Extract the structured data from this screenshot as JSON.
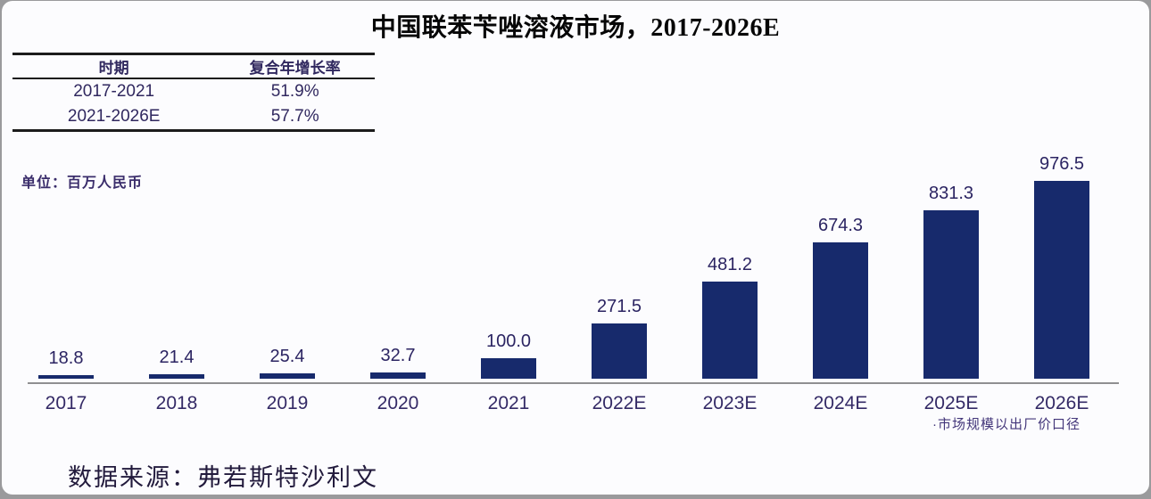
{
  "title": "中国联苯苄唑溶液市场，2017-2026E",
  "cagr_table": {
    "headers": [
      "时期",
      "复合年增长率"
    ],
    "rows": [
      [
        "2017-2021",
        "51.9%"
      ],
      [
        "2021-2026E",
        "57.7%"
      ]
    ]
  },
  "unit_label": "单位：百万人民币",
  "footnote": "·市场规模以出厂价口径",
  "source": "数据来源：弗若斯特沙利文",
  "colors": {
    "bar": "#172a6c",
    "axis": "#8f8f91",
    "label_text": "#2b2462",
    "tick_text": "#342a66"
  },
  "chart_data": {
    "type": "bar",
    "title": "中国联苯苄唑溶液市场，2017-2026E",
    "categories": [
      "2017",
      "2018",
      "2019",
      "2020",
      "2021",
      "2022E",
      "2023E",
      "2024E",
      "2025E",
      "2026E"
    ],
    "values": [
      18.8,
      21.4,
      25.4,
      32.7,
      100.0,
      271.5,
      481.2,
      674.3,
      831.3,
      976.5
    ],
    "unit": "百万人民币",
    "xlabel": "",
    "ylabel": "百万人民币",
    "ylim": [
      0,
      1000
    ],
    "grid": false,
    "legend": false,
    "value_labels": true,
    "cagr_2017_2021": "51.9%",
    "cagr_2021_2026E": "57.7%"
  }
}
